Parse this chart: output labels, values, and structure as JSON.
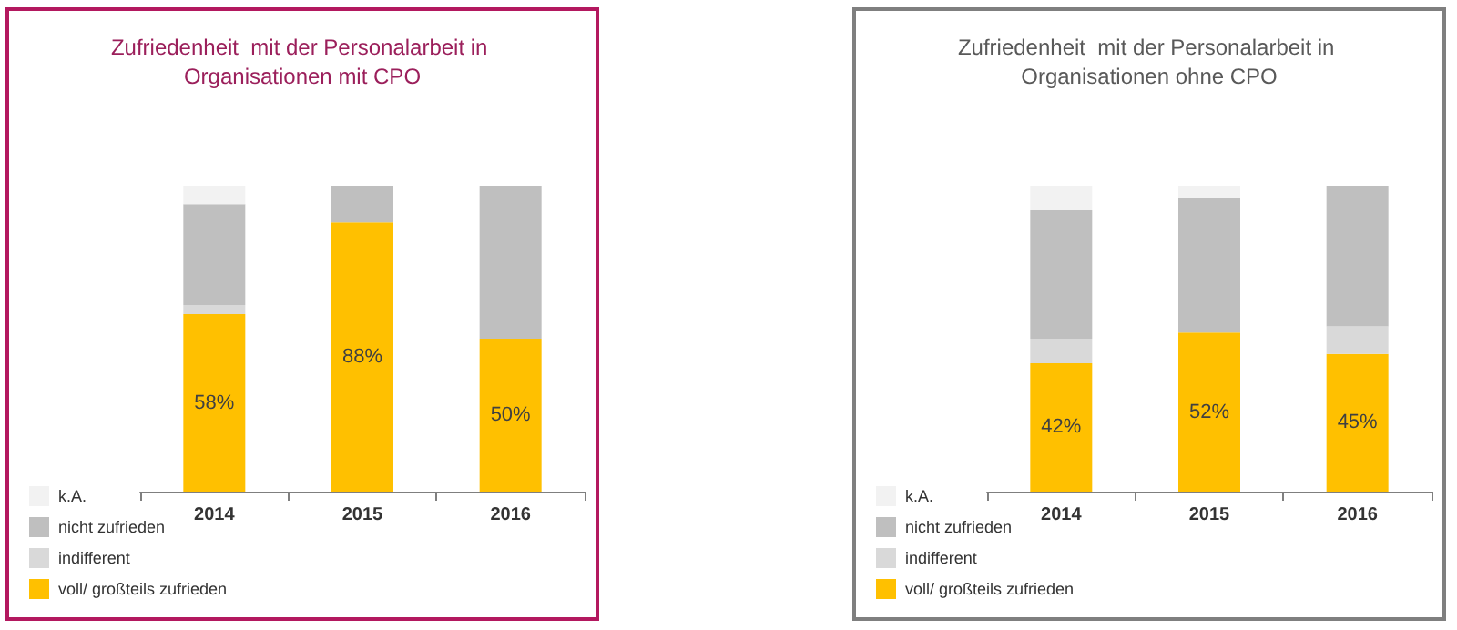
{
  "chart_data": [
    {
      "type": "bar",
      "title": "Zufriedenheit  mit der Personalarbeit in Organisationen mit CPO",
      "categories": [
        "2014",
        "2015",
        "2016"
      ],
      "stacked": true,
      "ylim": [
        0,
        100
      ],
      "tick_labels": "x",
      "legend": "bottom left",
      "series": [
        {
          "name": "voll/ großteils zufrieden",
          "color": "#ffc000",
          "values": [
            58,
            88,
            50
          ],
          "value_labels": [
            "58%",
            "88%",
            "50%"
          ]
        },
        {
          "name": "indifferent",
          "color": "#d9d9d9",
          "values": [
            3,
            0,
            0
          ]
        },
        {
          "name": "nicht zufrieden",
          "color": "#bfbfbf",
          "values": [
            33,
            12,
            50
          ]
        },
        {
          "name": "k.A.",
          "color": "#f2f2f2",
          "values": [
            6,
            0,
            0
          ]
        }
      ]
    },
    {
      "type": "bar",
      "title": "Zufriedenheit  mit der Personalarbeit in Organisationen ohne CPO",
      "categories": [
        "2014",
        "2015",
        "2016"
      ],
      "stacked": true,
      "ylim": [
        0,
        100
      ],
      "tick_labels": "x",
      "legend": "bottom left",
      "series": [
        {
          "name": "voll/ großteils zufrieden",
          "color": "#ffc000",
          "values": [
            42,
            52,
            45
          ],
          "value_labels": [
            "42%",
            "52%",
            "45%"
          ]
        },
        {
          "name": "indifferent",
          "color": "#d9d9d9",
          "values": [
            8,
            0,
            9
          ]
        },
        {
          "name": "nicht zufrieden",
          "color": "#bfbfbf",
          "values": [
            42,
            44,
            46
          ]
        },
        {
          "name": "k.A.",
          "color": "#f2f2f2",
          "values": [
            8,
            4,
            0
          ]
        }
      ]
    }
  ]
}
